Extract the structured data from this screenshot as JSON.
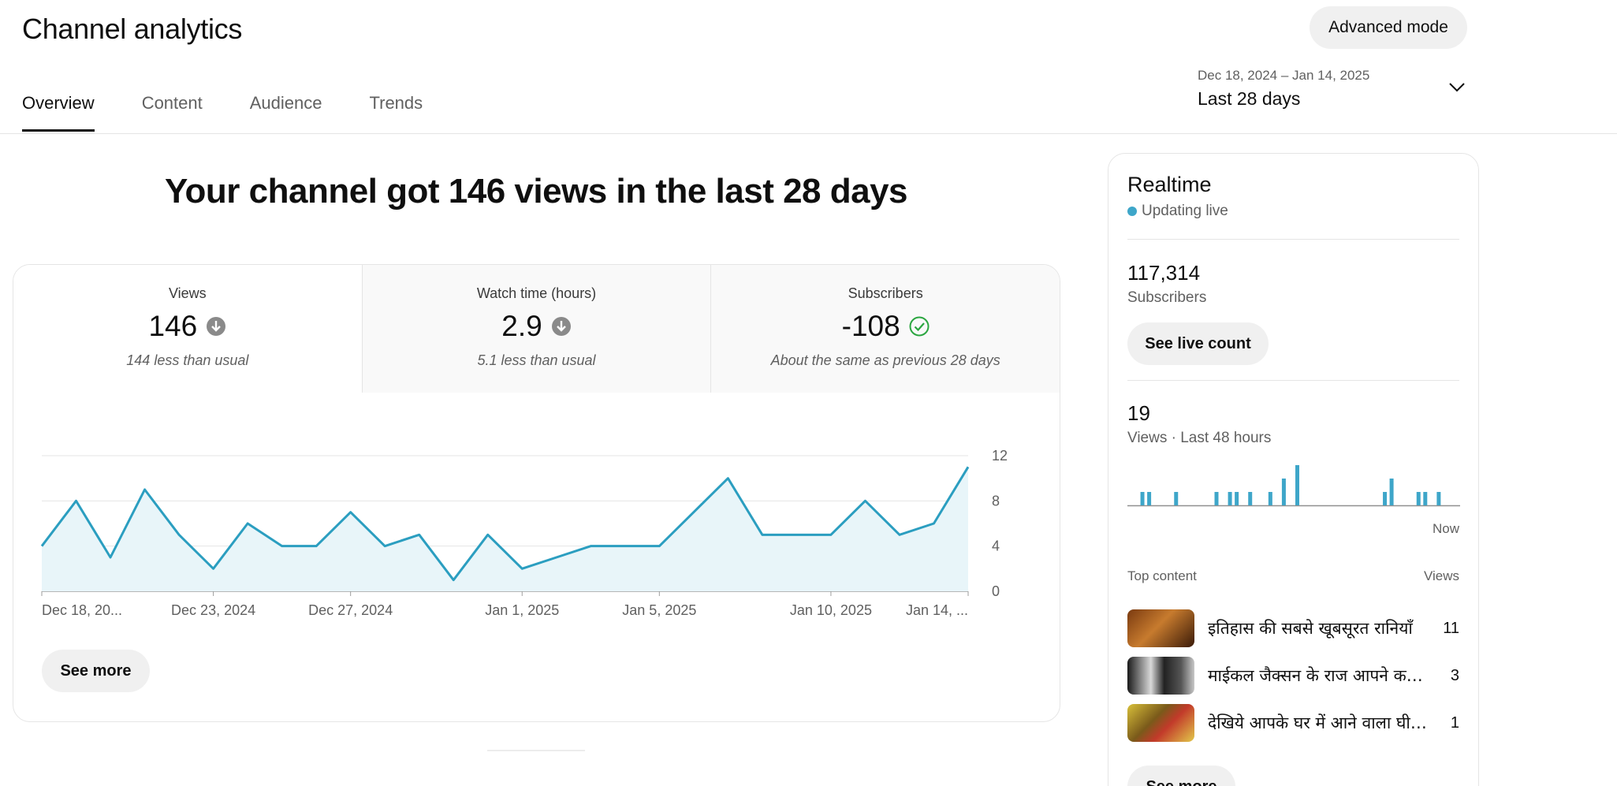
{
  "header": {
    "title": "Channel analytics",
    "advanced_mode": "Advanced mode",
    "tabs": [
      {
        "label": "Overview",
        "active": true
      },
      {
        "label": "Content",
        "active": false
      },
      {
        "label": "Audience",
        "active": false
      },
      {
        "label": "Trends",
        "active": false
      }
    ],
    "date_range": "Dec 18, 2024 – Jan 14, 2025",
    "date_label": "Last 28 days"
  },
  "headline": "Your channel got 146 views in the last 28 days",
  "metrics": [
    {
      "label": "Views",
      "value": "146",
      "icon": "arrow-down-icon",
      "note": "144 less than usual"
    },
    {
      "label": "Watch time (hours)",
      "value": "2.9",
      "icon": "arrow-down-icon",
      "note": "5.1 less than usual"
    },
    {
      "label": "Subscribers",
      "value": "-108",
      "icon": "check-circle-icon",
      "note": "About the same as previous 28 days"
    }
  ],
  "see_more": "See more",
  "colors": {
    "line": "#2b9ec0",
    "fill": "#e8f5f9",
    "check": "#2ba640",
    "down": "#8a8a8a",
    "bar": "#3ea6c9"
  },
  "chart_data": {
    "type": "area",
    "series": [
      {
        "name": "Views",
        "values": [
          4,
          8,
          3,
          9,
          5,
          2,
          6,
          4,
          4,
          7,
          4,
          5,
          1,
          5,
          2,
          3,
          4,
          4,
          4,
          7,
          10,
          5,
          5,
          5,
          8,
          5,
          6,
          11
        ]
      }
    ],
    "x": [
      "Dec 18, 2024",
      "Dec 19",
      "Dec 20",
      "Dec 21",
      "Dec 22",
      "Dec 23, 2024",
      "Dec 24",
      "Dec 25",
      "Dec 26",
      "Dec 27, 2024",
      "Dec 28",
      "Dec 29",
      "Dec 30",
      "Dec 31",
      "Jan 1, 2025",
      "Jan 2",
      "Jan 3",
      "Jan 4",
      "Jan 5, 2025",
      "Jan 6",
      "Jan 7",
      "Jan 8",
      "Jan 9",
      "Jan 10, 2025",
      "Jan 11",
      "Jan 12",
      "Jan 13",
      "Jan 14, 2025"
    ],
    "x_tick_labels": [
      {
        "label": "Dec 18, 20...",
        "index": 0
      },
      {
        "label": "Dec 23, 2024",
        "index": 5
      },
      {
        "label": "Dec 27, 2024",
        "index": 9
      },
      {
        "label": "Jan 1, 2025",
        "index": 14
      },
      {
        "label": "Jan 5, 2025",
        "index": 18
      },
      {
        "label": "Jan 10, 2025",
        "index": 23
      },
      {
        "label": "Jan 14, ...",
        "index": 27
      }
    ],
    "y_ticks": [
      "0",
      "4",
      "8",
      "12"
    ],
    "ylim": [
      0,
      12
    ],
    "grid": true
  },
  "realtime": {
    "title": "Realtime",
    "status": "Updating live",
    "subscribers_count": "117,314",
    "subscribers_label": "Subscribers",
    "see_live_count": "See live count",
    "views_count": "19",
    "views_label": "Views · Last 48 hours",
    "now_label": "Now",
    "bars": [
      0,
      1,
      1,
      0,
      0,
      0,
      1,
      0,
      0,
      0,
      0,
      0,
      1,
      0,
      1,
      1,
      0,
      1,
      0,
      0,
      1,
      0,
      2,
      0,
      3,
      0,
      0,
      0,
      0,
      0,
      0,
      0,
      0,
      0,
      0,
      0,
      0,
      1,
      2,
      0,
      0,
      0,
      1,
      1,
      0,
      1,
      0,
      0
    ],
    "top_content_label": "Top content",
    "views_col_label": "Views",
    "top_content": [
      {
        "title": "इतिहास की सबसे खूबसूरत रानियाँ",
        "views": "11",
        "thumb": "thumb-queens"
      },
      {
        "title": "माईकल जैक्सन के राज आपने कहीं नहीं सुने होंगे",
        "views": "3",
        "thumb": "thumb-mj"
      },
      {
        "title": "देखिये आपके घर में आने वाला घी कैसे बनता है",
        "views": "1",
        "thumb": "thumb-ghee"
      }
    ],
    "see_more": "See more"
  }
}
